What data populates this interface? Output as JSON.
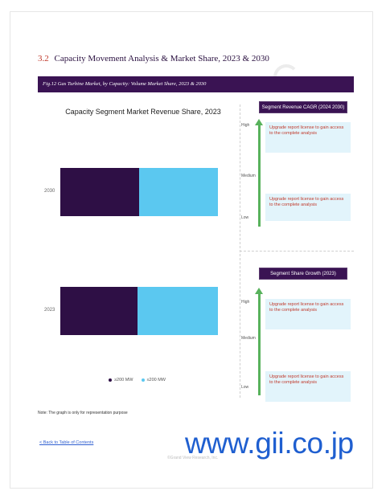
{
  "section": {
    "number": "3.2",
    "title": "Capacity Movement Analysis & Market Share, 2023 & 2030"
  },
  "figure_caption": "Fig.12 Gas Turbine Market, by Capacity: Volume Market Share, 2023 & 2030",
  "chart_data": {
    "type": "bar",
    "orientation": "horizontal",
    "stacked": true,
    "title": "Capacity Segment Market Revenue Share, 2023",
    "categories": [
      "2030",
      "2023"
    ],
    "series": [
      {
        "name": "≥200 MW",
        "color": "#2e0f45",
        "values": [
          50,
          49
        ]
      },
      {
        "name": "≤200 MW",
        "color": "#5bc8f0",
        "values": [
          50,
          51
        ]
      }
    ],
    "xlim": [
      0,
      100
    ],
    "legend_position": "bottom"
  },
  "panels": [
    {
      "header": "Segment Revenue CAGR (2024 2030)",
      "levels": [
        "High",
        "Medium",
        "Low"
      ],
      "boxes": [
        "Upgrade report license to gain access to the complete analysis",
        "Upgrade report license to gain access to the complete analysis"
      ]
    },
    {
      "header": "Segment Share Growth (2023)",
      "levels": [
        "High",
        "Medium",
        "Low"
      ],
      "boxes": [
        "Upgrade report license to gain access to the complete analysis",
        "Upgrade report license to gain access to the complete analysis"
      ]
    }
  ],
  "note": "Note: The graph is only for representation purpose",
  "back_link": "< Back to Table of Contents",
  "footer_faint": "©Grand View Research, Inc.",
  "watermark": "www.gii.co.jp",
  "colors": {
    "accent": "#3a1353",
    "arrow": "#58b25c",
    "box_bg": "#e2f4fb",
    "link": "#2f5fd0"
  }
}
